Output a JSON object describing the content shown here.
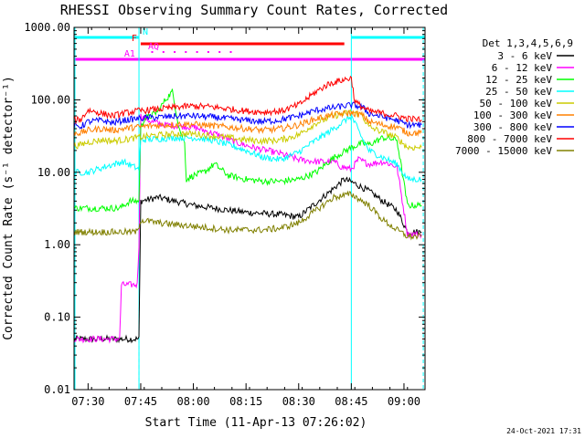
{
  "chart_data": {
    "type": "line",
    "title": "RHESSI Observing Summary Count Rates, Corrected",
    "xlabel": "Start Time (11-Apr-13 07:26:02)",
    "ylabel": "Corrected Count Rate (s⁻¹ detector⁻¹)",
    "yscale": "log",
    "ylim": [
      0.01,
      1000
    ],
    "xlim_minutes_of_day": [
      446,
      546
    ],
    "xticks": [
      {
        "t": 450,
        "label": "07:30"
      },
      {
        "t": 465,
        "label": "07:45"
      },
      {
        "t": 480,
        "label": "08:00"
      },
      {
        "t": 495,
        "label": "08:15"
      },
      {
        "t": 510,
        "label": "08:30"
      },
      {
        "t": 525,
        "label": "08:45"
      },
      {
        "t": 540,
        "label": "09:00"
      }
    ],
    "yticks": [
      {
        "v": 0.01,
        "label": "0.01"
      },
      {
        "v": 0.1,
        "label": "0.10"
      },
      {
        "v": 1,
        "label": "1.00"
      },
      {
        "v": 10,
        "label": "10.00"
      },
      {
        "v": 100,
        "label": "100.00"
      },
      {
        "v": 1000,
        "label": "1000.00"
      }
    ],
    "legend_title": "Det 1,3,4,5,6,9",
    "legend_position": "right",
    "series": [
      {
        "name": "3 - 6 keV",
        "color": "#000000",
        "x": [
          446,
          464.5,
          465,
          470,
          480,
          490,
          495,
          505,
          510,
          515,
          520,
          523,
          526,
          530,
          534,
          538,
          541,
          545
        ],
        "y": [
          0.05,
          0.05,
          4.0,
          4.5,
          3.5,
          3.0,
          2.8,
          2.6,
          2.4,
          3.8,
          6.0,
          8.0,
          7.0,
          5.5,
          4.0,
          3.0,
          1.5,
          1.5
        ]
      },
      {
        "name": "6 - 12 keV",
        "color": "#ff00ff",
        "x": [
          446,
          459,
          459.5,
          464,
          464.5,
          465,
          468,
          472,
          480,
          487,
          492,
          497,
          505,
          510,
          515,
          520,
          522,
          525,
          527,
          530,
          534,
          538,
          541,
          545
        ],
        "y": [
          0.05,
          0.05,
          0.28,
          0.28,
          1.0,
          60,
          50,
          45,
          42,
          33,
          26,
          22,
          18,
          15,
          14,
          14,
          12,
          11,
          15,
          13,
          14,
          12,
          1.4,
          1.4
        ]
      },
      {
        "name": "12 - 25 keV",
        "color": "#00ff00",
        "x": [
          446,
          459,
          462,
          464.5,
          465,
          466,
          468,
          470,
          472,
          474,
          476,
          477.5,
          478,
          480,
          483,
          486,
          490,
          495,
          500,
          505,
          510,
          515,
          520,
          525,
          528,
          530,
          534,
          538,
          541,
          545
        ],
        "y": [
          3.2,
          3.2,
          4.0,
          4.0,
          40,
          55,
          60,
          70,
          100,
          130,
          40,
          25,
          8,
          9,
          10,
          13,
          9,
          8,
          7.5,
          7.5,
          8,
          10,
          16,
          22,
          25,
          24,
          30,
          28,
          3.5,
          3.5
        ]
      },
      {
        "name": "25 - 50 keV",
        "color": "#00ffff",
        "x": [
          446,
          450,
          455,
          460,
          464.5,
          465,
          470,
          475,
          480,
          485,
          490,
          495,
          500,
          505,
          510,
          515,
          520,
          525,
          528,
          530,
          534,
          538,
          541,
          545
        ],
        "y": [
          10,
          10,
          12,
          14,
          11,
          28,
          29,
          30,
          30,
          28,
          24,
          20,
          16,
          15,
          19,
          28,
          40,
          60,
          30,
          20,
          16,
          13,
          8,
          8
        ]
      },
      {
        "name": "50 - 100 keV",
        "color": "#cccc00",
        "x": [
          446,
          448,
          450,
          454,
          457,
          460,
          464,
          468,
          472,
          476,
          480,
          485,
          490,
          495,
          500,
          505,
          510,
          515,
          520,
          525,
          528,
          530,
          534,
          538,
          541,
          545
        ],
        "y": [
          23,
          24,
          26,
          28,
          27,
          28,
          30,
          32,
          33,
          34,
          34,
          32,
          30,
          28,
          27,
          28,
          33,
          48,
          60,
          68,
          62,
          42,
          36,
          30,
          22,
          22
        ]
      },
      {
        "name": "100 - 300 keV",
        "color": "#ff8000",
        "x": [
          446,
          448,
          450,
          454,
          457,
          460,
          464,
          468,
          472,
          476,
          480,
          485,
          490,
          495,
          500,
          505,
          510,
          515,
          520,
          525,
          528,
          530,
          534,
          538,
          541,
          545
        ],
        "y": [
          35,
          35,
          38,
          40,
          38,
          40,
          42,
          44,
          45,
          46,
          46,
          44,
          42,
          40,
          38,
          40,
          45,
          55,
          62,
          66,
          62,
          50,
          45,
          42,
          35,
          35
        ]
      },
      {
        "name": "300 - 800 keV",
        "color": "#0000ff",
        "x": [
          446,
          448,
          450,
          454,
          457,
          460,
          464,
          468,
          472,
          476,
          480,
          485,
          490,
          495,
          500,
          505,
          510,
          515,
          520,
          525,
          528,
          530,
          534,
          538,
          541,
          545
        ],
        "y": [
          43,
          43,
          50,
          52,
          48,
          52,
          55,
          57,
          58,
          60,
          60,
          58,
          55,
          52,
          50,
          53,
          60,
          72,
          78,
          85,
          80,
          65,
          58,
          52,
          45,
          45
        ]
      },
      {
        "name": "800 - 7000 keV",
        "color": "#ff0000",
        "x": [
          446,
          448,
          450,
          454,
          457,
          460,
          464,
          468,
          472,
          476,
          480,
          485,
          490,
          495,
          500,
          505,
          510,
          515,
          518,
          520,
          523,
          525,
          526,
          528,
          530,
          534,
          538,
          541,
          545
        ],
        "y": [
          52,
          54,
          72,
          65,
          60,
          65,
          70,
          73,
          76,
          80,
          82,
          80,
          75,
          70,
          68,
          70,
          85,
          130,
          160,
          175,
          190,
          200,
          95,
          80,
          70,
          65,
          60,
          55,
          53
        ]
      },
      {
        "name": "7000 - 15000 keV",
        "color": "#808000",
        "x": [
          446,
          459,
          464,
          465,
          470,
          480,
          490,
          500,
          505,
          510,
          515,
          520,
          525,
          530,
          534,
          538,
          541,
          545
        ],
        "y": [
          1.5,
          1.5,
          1.5,
          2.2,
          2.0,
          1.8,
          1.6,
          1.6,
          1.7,
          2.0,
          3.0,
          4.5,
          5.0,
          3.5,
          2.2,
          1.6,
          1.3,
          1.3
        ]
      }
    ],
    "annotations": {
      "regions": [
        {
          "label": "N",
          "color": "#00ffff",
          "segments": [
            [
              446,
              464.5
            ],
            [
              525,
              546
            ]
          ]
        },
        {
          "label": "F",
          "color": "#ff0000",
          "segments": [
            [
              465,
              523
            ]
          ]
        },
        {
          "label": "AQ",
          "color": "#ff00ff",
          "dotted": true,
          "segments": [
            [
              465,
              493
            ]
          ]
        },
        {
          "label": "A1",
          "color": "#ff00ff",
          "segments": [
            [
              446,
              546
            ]
          ]
        }
      ],
      "vlines": [
        464.5,
        525
      ]
    }
  },
  "footer": {
    "date": "24-Oct-2021 17:31"
  },
  "colors": {
    "axis": "#000000",
    "vline": "#00ffff"
  }
}
